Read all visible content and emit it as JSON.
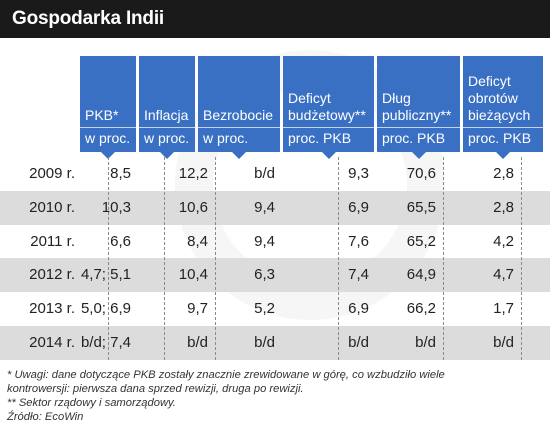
{
  "title": "Gospodarka Indii",
  "columns": [
    {
      "label": "PKB*",
      "unit": "w proc."
    },
    {
      "label": "Inflacja",
      "unit": "w proc."
    },
    {
      "label": "Bezrobocie",
      "unit": "w proc."
    },
    {
      "label": "Deficyt budżetowy**",
      "unit": "proc. PKB"
    },
    {
      "label": "Dług publiczny**",
      "unit": "proc. PKB"
    },
    {
      "label": "Deficyt obrotów bieżących",
      "unit": "proc. PKB"
    }
  ],
  "rows": [
    {
      "year": "2009 r.",
      "values": [
        "8,5",
        "12,2",
        "b/d",
        "9,3",
        "70,6",
        "2,8"
      ]
    },
    {
      "year": "2010 r.",
      "values": [
        "10,3",
        "10,6",
        "9,4",
        "6,9",
        "65,5",
        "2,8"
      ]
    },
    {
      "year": "2011 r.",
      "values": [
        "6,6",
        "8,4",
        "9,4",
        "7,6",
        "65,2",
        "4,2"
      ]
    },
    {
      "year": "2012 r.",
      "values": [
        "4,7; 5,1",
        "10,4",
        "6,3",
        "7,4",
        "64,9",
        "4,7"
      ]
    },
    {
      "year": "2013 r.",
      "values": [
        "5,0; 6,9",
        "9,7",
        "5,2",
        "6,9",
        "66,2",
        "1,7"
      ]
    },
    {
      "year": "2014 r.",
      "values": [
        "b/d; 7,4",
        "b/d",
        "b/d",
        "b/d",
        "b/d",
        "b/d"
      ]
    }
  ],
  "notes": {
    "line1": "* Uwagi: dane dotyczące PKB zostały znacznie zrewidowane w górę, co wzbudziło wiele",
    "line2": "kontrowersji: pierwsza dana sprzed rewizji, druga po rewizji.",
    "line3": "** Sektor rządowy i samorządowy.",
    "source": "Źródło: EcoWin"
  },
  "colors": {
    "header": "#3a70c4",
    "title_bar": "#1a1a1a",
    "shaded_row": "#dcdcdc"
  }
}
